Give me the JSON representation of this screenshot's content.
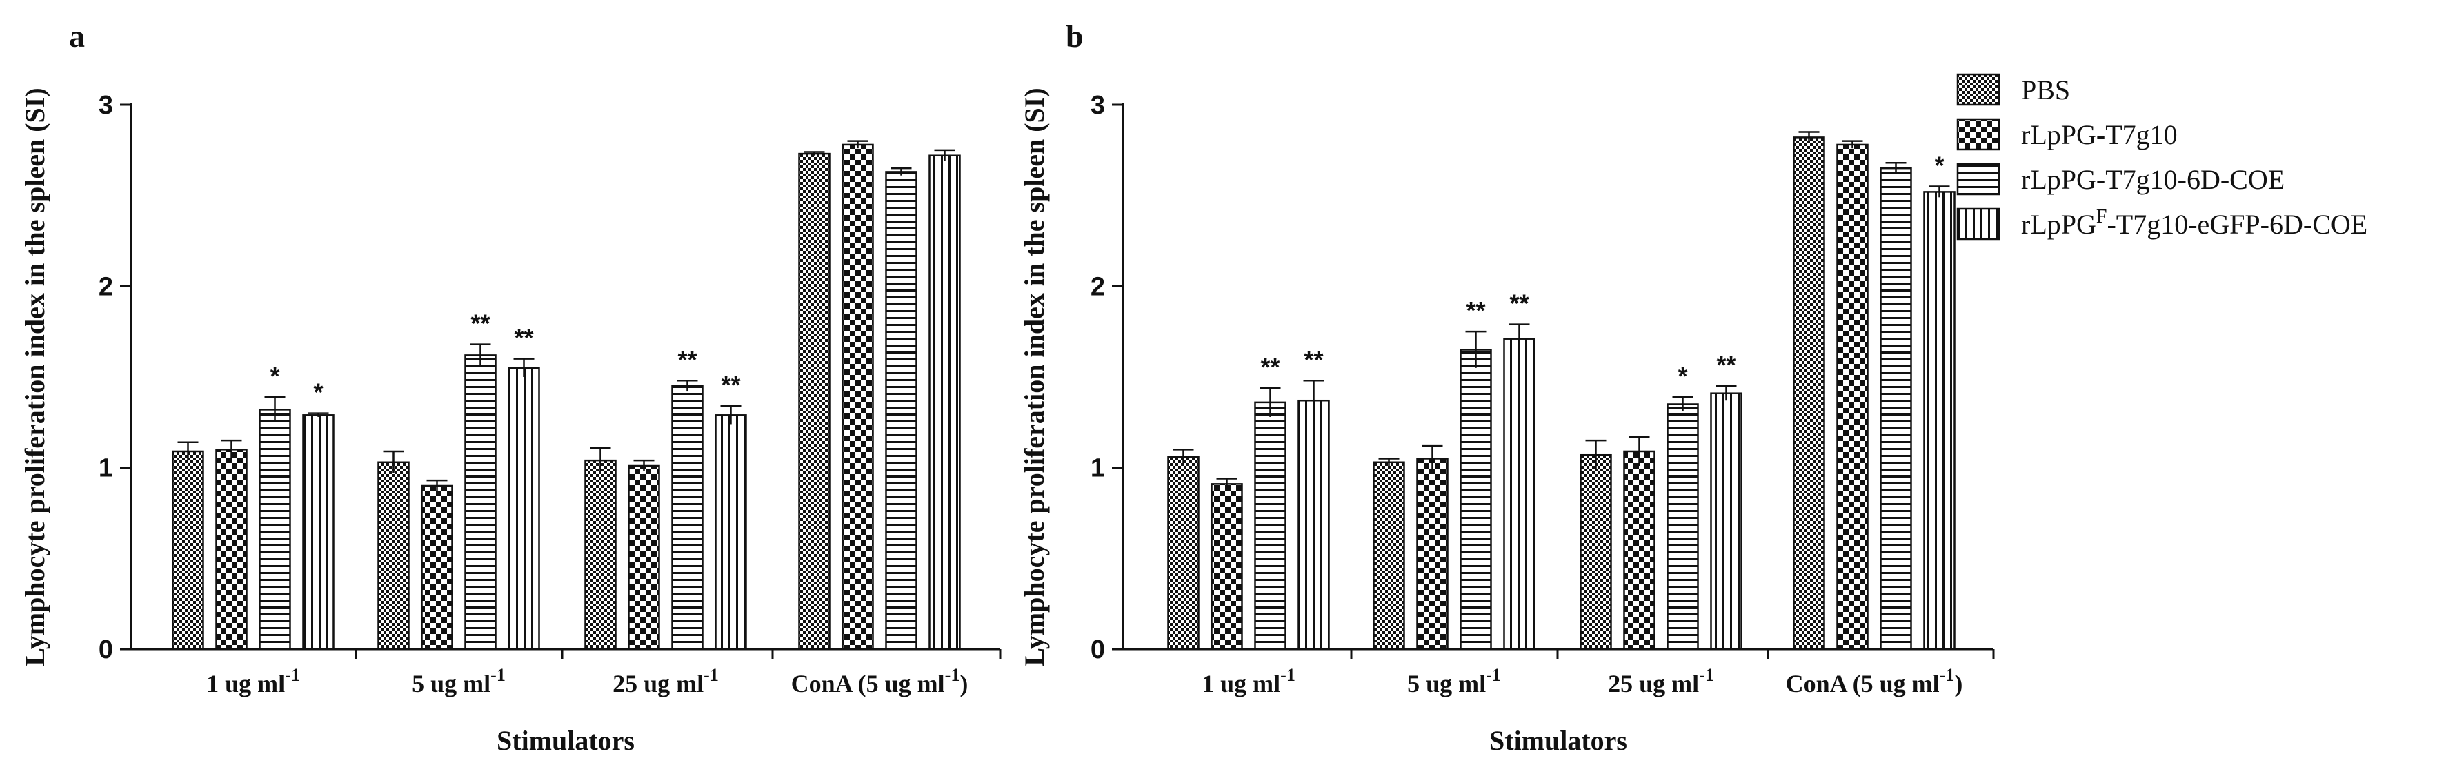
{
  "legend": {
    "items": [
      {
        "label": "PBS",
        "pattern": "dots"
      },
      {
        "label": "rLpPG-T7g10",
        "pattern": "checker"
      },
      {
        "label": "rLpPG-T7g10-6D-COE",
        "pattern": "hlines"
      },
      {
        "label": "rLpPG",
        "sup": "F",
        "label_after": "-T7g10-eGFP-6D-COE",
        "pattern": "vlines"
      }
    ]
  },
  "colors": {
    "ink": "#111111",
    "background": "#ffffff"
  },
  "chart_data": [
    {
      "panel": "a",
      "type": "bar",
      "ylabel": "Lymphocyte proliferation index in the spleen (SI)",
      "xlabel": "Stimulators",
      "ylim": [
        0,
        3
      ],
      "yticks": [
        "0",
        "1",
        "2",
        "3"
      ],
      "categories": [
        {
          "text": "1 ug ml",
          "sup": "-1",
          "after": ""
        },
        {
          "text": "5 ug ml",
          "sup": "-1",
          "after": ""
        },
        {
          "text": "25 ug ml",
          "sup": "-1",
          "after": ""
        },
        {
          "text": "ConA (5 ug ml",
          "sup": "-1",
          "after": ")"
        }
      ],
      "series": [
        {
          "name": "PBS",
          "values": [
            1.09,
            1.03,
            1.04,
            2.73
          ],
          "errors": [
            0.05,
            0.06,
            0.07,
            0.01
          ],
          "sig": [
            "",
            "",
            "",
            ""
          ]
        },
        {
          "name": "rLpPG-T7g10",
          "values": [
            1.1,
            0.9,
            1.01,
            2.78
          ],
          "errors": [
            0.05,
            0.03,
            0.03,
            0.02
          ],
          "sig": [
            "",
            "",
            "",
            ""
          ]
        },
        {
          "name": "rLpPG-T7g10-6D-COE",
          "values": [
            1.32,
            1.62,
            1.45,
            2.63
          ],
          "errors": [
            0.07,
            0.06,
            0.03,
            0.02
          ],
          "sig": [
            "*",
            "**",
            "**",
            ""
          ]
        },
        {
          "name": "rLpPGF-T7g10-eGFP-6D-COE",
          "values": [
            1.29,
            1.55,
            1.29,
            2.72
          ],
          "errors": [
            0.01,
            0.05,
            0.05,
            0.03
          ],
          "sig": [
            "*",
            "**",
            "**",
            ""
          ]
        }
      ]
    },
    {
      "panel": "b",
      "type": "bar",
      "ylabel": "Lymphocyte proliferation index in the spleen (SI)",
      "xlabel": "Stimulators",
      "ylim": [
        0,
        3
      ],
      "yticks": [
        "0",
        "1",
        "2",
        "3"
      ],
      "categories": [
        {
          "text": "1 ug ml",
          "sup": "-1",
          "after": ""
        },
        {
          "text": "5 ug ml",
          "sup": "-1",
          "after": ""
        },
        {
          "text": "25 ug ml",
          "sup": "-1",
          "after": ""
        },
        {
          "text": "ConA (5 ug ml",
          "sup": "-1",
          "after": ")"
        }
      ],
      "series": [
        {
          "name": "PBS",
          "values": [
            1.06,
            1.03,
            1.07,
            2.82
          ],
          "errors": [
            0.04,
            0.02,
            0.08,
            0.03
          ],
          "sig": [
            "",
            "",
            "",
            ""
          ]
        },
        {
          "name": "rLpPG-T7g10",
          "values": [
            0.91,
            1.05,
            1.09,
            2.78
          ],
          "errors": [
            0.03,
            0.07,
            0.08,
            0.02
          ],
          "sig": [
            "",
            "",
            "",
            ""
          ]
        },
        {
          "name": "rLpPG-T7g10-6D-COE",
          "values": [
            1.36,
            1.65,
            1.35,
            2.65
          ],
          "errors": [
            0.08,
            0.1,
            0.04,
            0.03
          ],
          "sig": [
            "**",
            "**",
            "*",
            ""
          ]
        },
        {
          "name": "rLpPGF-T7g10-eGFP-6D-COE",
          "values": [
            1.37,
            1.71,
            1.41,
            2.52
          ],
          "errors": [
            0.11,
            0.08,
            0.04,
            0.03
          ],
          "sig": [
            "**",
            "**",
            "**",
            "*"
          ]
        }
      ]
    }
  ]
}
